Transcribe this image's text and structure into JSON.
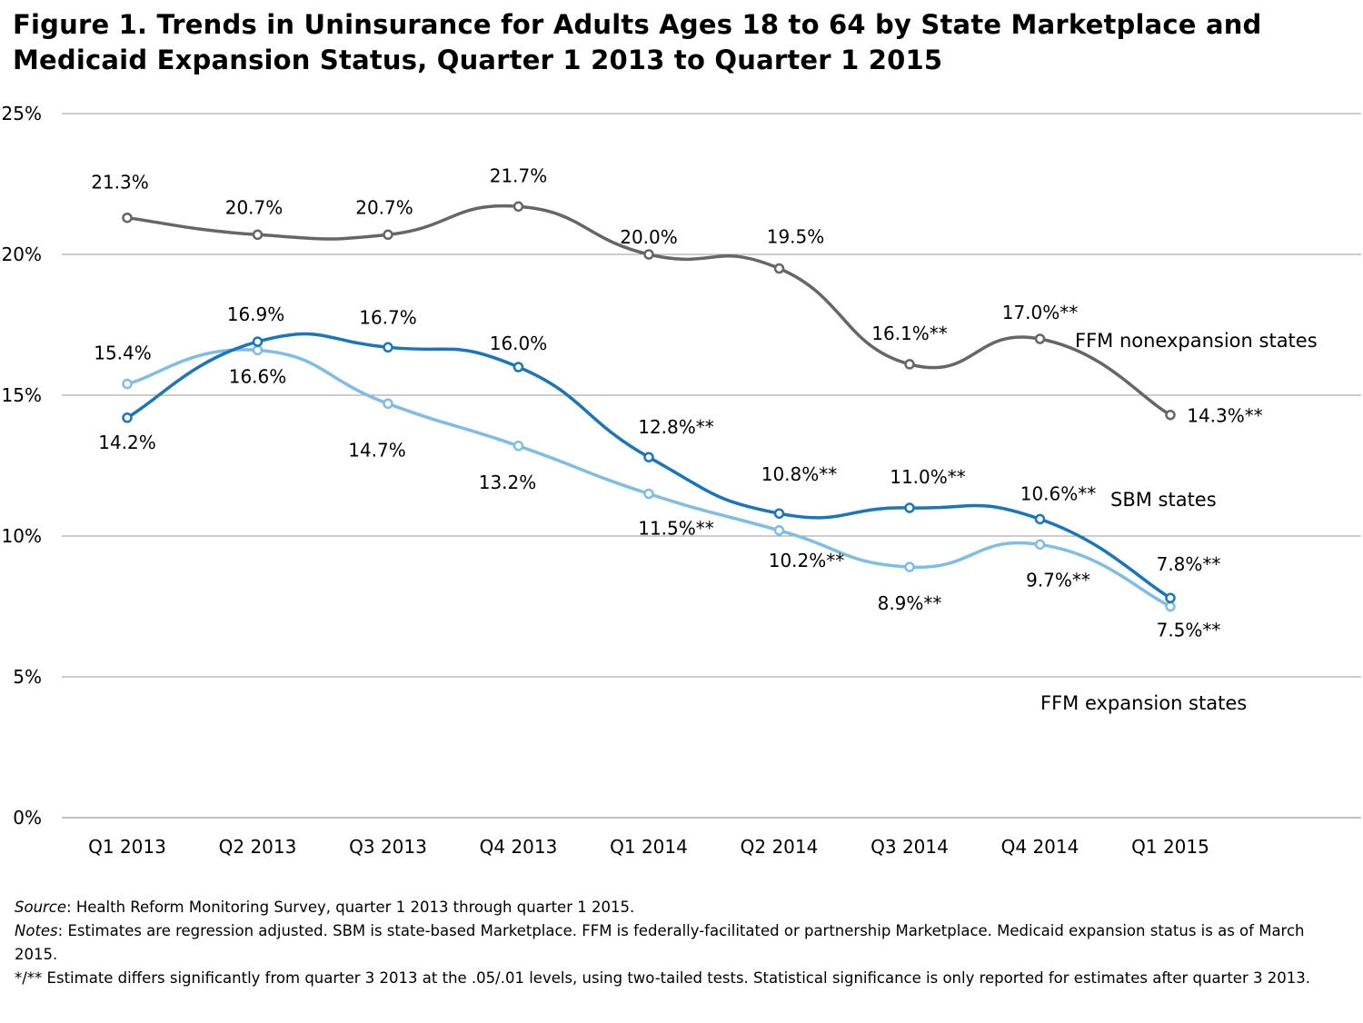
{
  "title": "Figure 1. Trends in Uninsurance for Adults Ages 18 to 64 by State Marketplace and Medicaid Expansion Status, Quarter 1 2013 to Quarter 1 2015",
  "chart_data": {
    "type": "line",
    "x": [
      "Q1 2013",
      "Q2 2013",
      "Q3 2013",
      "Q4 2013",
      "Q1 2014",
      "Q2 2014",
      "Q3 2014",
      "Q4 2014",
      "Q1 2015"
    ],
    "ylim": [
      0,
      25
    ],
    "yticks": [
      "0%",
      "5%",
      "10%",
      "15%",
      "20%",
      "25%"
    ],
    "grid": true,
    "series": [
      {
        "name": "FFM nonexpansion states",
        "color": "#666666",
        "values": [
          21.3,
          20.7,
          20.7,
          21.7,
          20.0,
          19.5,
          16.1,
          17.0,
          14.3
        ],
        "labels": [
          "21.3%",
          "20.7%",
          "20.7%",
          "21.7%",
          "20.0%",
          "19.5%",
          "16.1%**",
          "17.0%**",
          "14.3%**"
        ]
      },
      {
        "name": "SBM states",
        "color": "#1b75bc",
        "values": [
          14.2,
          16.9,
          16.7,
          16.0,
          12.8,
          10.8,
          11.0,
          10.6,
          7.8
        ],
        "labels": [
          "14.2%",
          "16.9%",
          "16.7%",
          "16.0%",
          "12.8%**",
          "10.8%**",
          "11.0%**",
          "10.6%**",
          "7.8%**"
        ]
      },
      {
        "name": "FFM expansion states",
        "color": "#7fbde6",
        "values": [
          15.4,
          16.6,
          14.7,
          13.2,
          11.5,
          10.2,
          8.9,
          9.7,
          7.5
        ],
        "labels": [
          "15.4%",
          "16.6%",
          "14.7%",
          "13.2%",
          "11.5%**",
          "10.2%**",
          "8.9%**",
          "9.7%**",
          "7.5%**"
        ]
      }
    ]
  },
  "notes": {
    "source_label": "Source",
    "source_text": ": Health Reform Monitoring Survey, quarter 1 2013 through quarter 1 2015.",
    "notes_label": "Notes",
    "notes_text": ":  Estimates are regression adjusted. SBM is state-based Marketplace. FFM is federally-facilitated or partnership Marketplace. Medicaid expansion status is as of March 2015.",
    "significance": "*/** Estimate differs significantly from quarter 3 2013 at the .05/.01 levels, using two-tailed tests. Statistical significance is only reported for estimates after quarter 3 2013."
  }
}
